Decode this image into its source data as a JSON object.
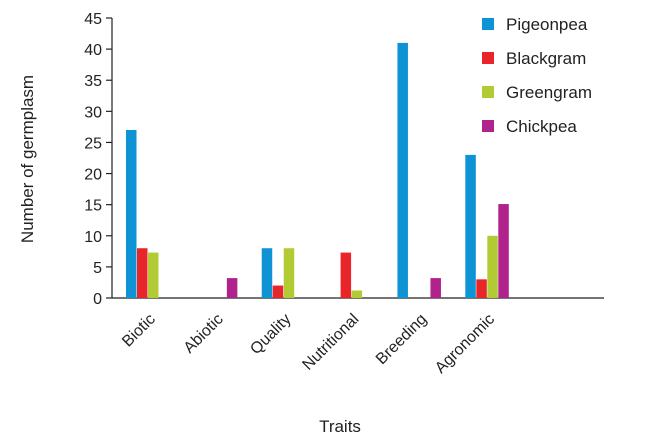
{
  "chart_data": {
    "type": "bar",
    "title": "",
    "xlabel": "Traits",
    "ylabel": "Number of germplasm",
    "ylim": [
      0,
      45
    ],
    "yticks": [
      0,
      5,
      10,
      15,
      20,
      25,
      30,
      35,
      40,
      45
    ],
    "categories": [
      "Biotic",
      "Abiotic",
      "Quality",
      "Nutritional",
      "Breeding",
      "Agronomic"
    ],
    "series": [
      {
        "name": "Pigeonpea",
        "color": "#0e93d4",
        "values": [
          27,
          0,
          8,
          0,
          41,
          23
        ]
      },
      {
        "name": "Blackgram",
        "color": "#e8262a",
        "values": [
          8,
          0,
          2,
          7.3,
          0,
          3
        ]
      },
      {
        "name": "Greengram",
        "color": "#b2cb35",
        "values": [
          7.3,
          0,
          8,
          1.2,
          0,
          10
        ]
      },
      {
        "name": "Chickpea",
        "color": "#b0228c",
        "values": [
          0,
          3.2,
          0,
          0,
          3.2,
          15.1
        ]
      }
    ],
    "grid": false,
    "legend_position": "top-right"
  }
}
